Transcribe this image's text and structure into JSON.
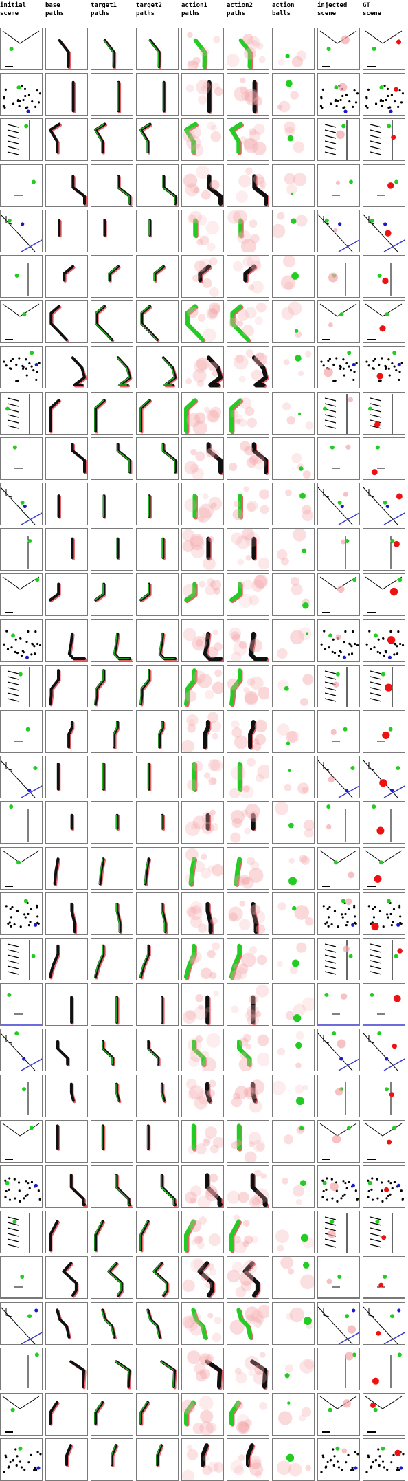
{
  "header": {
    "columns": [
      {
        "label": "initial\nscene"
      },
      {
        "label": "base\npaths"
      },
      {
        "label": "target1\npaths"
      },
      {
        "label": "target2\npaths"
      },
      {
        "label": "action1\npaths"
      },
      {
        "label": "action2\npaths"
      },
      {
        "label": "action\nballs"
      },
      {
        "label": "injected\nscene"
      },
      {
        "label": "GT\nscene"
      }
    ]
  },
  "grid": {
    "row_count": 32,
    "column_count": 9,
    "colors": {
      "path_dark": "#101010",
      "path_red": "#e0202a",
      "path_green": "#22cc22",
      "heat_red": "#f4a6aa",
      "ball_red": "#ee1111",
      "ball_green": "#22cc22",
      "ball_blue": "#1a1acc",
      "scene_black": "#000000",
      "floor_blue": "#3a3ad0",
      "grid_line": "#7a7a7a"
    }
  }
}
